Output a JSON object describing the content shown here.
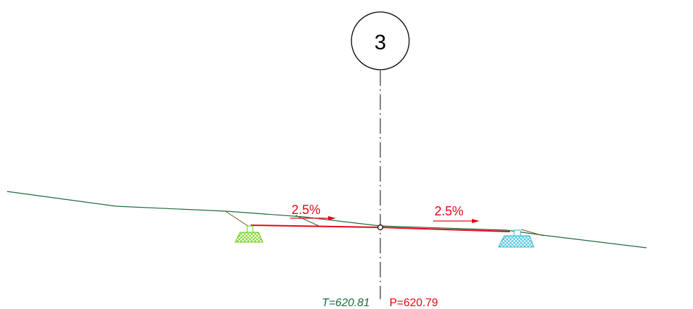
{
  "drawing": {
    "station_number": "3",
    "left_slope": "2.5%",
    "right_slope": "2.5%",
    "terrain_elevation": "T=620.81",
    "project_elevation": "P=620.79"
  },
  "colors": {
    "terrain": "#1a6b3a",
    "design": "#e30613",
    "axis": "#000000",
    "left_ditch": "#66cc00",
    "right_ditch": "#22b5d9",
    "slope_fill": "#7a4a1e",
    "terrain_label": "#1a6b3a",
    "project_label": "#e30613"
  }
}
